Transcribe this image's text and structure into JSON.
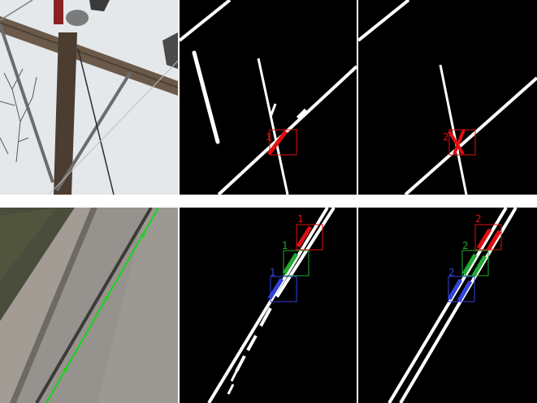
{
  "colors": {
    "red": "#e01010",
    "green": "#22aa33",
    "blue": "#3344dd",
    "line_overlay": "#19d419"
  },
  "panels": {
    "top_middle": {
      "red_label": "1"
    },
    "top_right": {
      "red_label": "2"
    },
    "bottom_middle": {
      "red_label": "1",
      "green_label": "1",
      "blue_label": "1"
    },
    "bottom_right": {
      "red_label": "2",
      "green_label": "2",
      "blue_label": "2"
    }
  }
}
